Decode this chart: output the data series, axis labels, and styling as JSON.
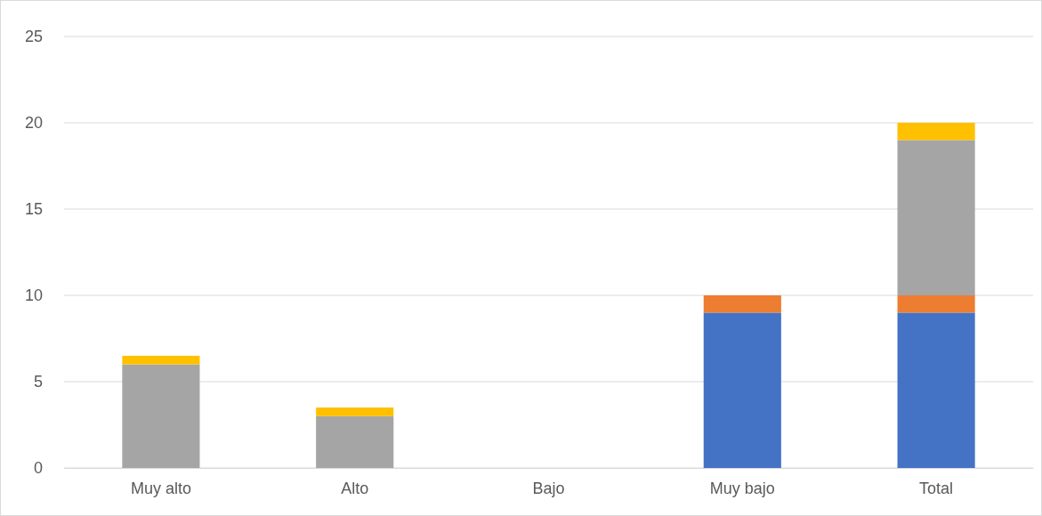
{
  "chart_data": {
    "type": "bar",
    "stacked": true,
    "categories": [
      "Muy alto",
      "Alto",
      "Bajo",
      "Muy bajo",
      "Total"
    ],
    "series": [
      {
        "color": "#4472c4",
        "values": [
          0,
          0,
          0,
          9,
          9
        ]
      },
      {
        "color": "#ed7d31",
        "values": [
          0,
          0,
          0,
          1,
          1
        ]
      },
      {
        "color": "#a5a5a5",
        "values": [
          6,
          3,
          0,
          0,
          9
        ]
      },
      {
        "color": "#ffc000",
        "values": [
          0.5,
          0.5,
          0,
          0,
          1
        ]
      }
    ],
    "ylim": [
      0,
      25
    ],
    "yticks": [
      0,
      5,
      10,
      15,
      20,
      25
    ],
    "grid": "y"
  }
}
